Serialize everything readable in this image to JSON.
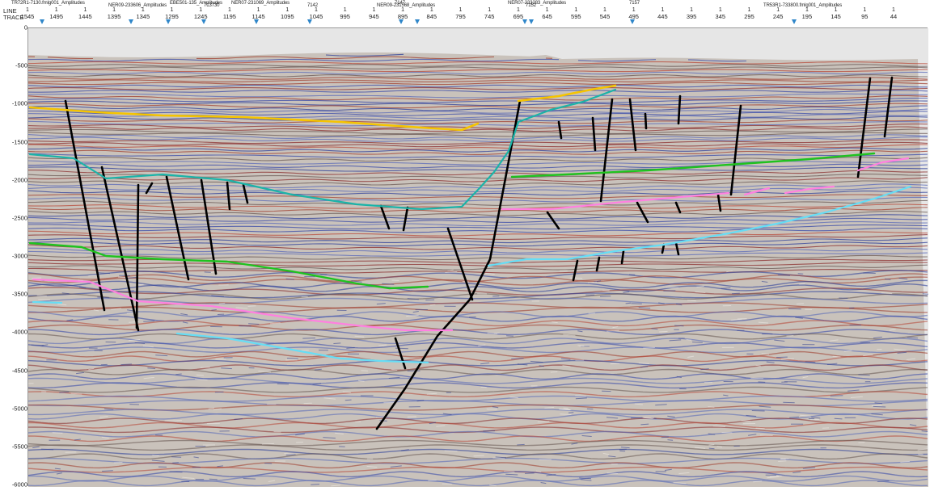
{
  "ruler": {
    "line_label": "LINE",
    "trace_label": "TRACE",
    "trace_ticks": [
      "1545",
      "1495",
      "1445",
      "1395",
      "1345",
      "1295",
      "1245",
      "1195",
      "1145",
      "1095",
      "1045",
      "995",
      "945",
      "895",
      "845",
      "795",
      "745",
      "695",
      "645",
      "595",
      "545",
      "495",
      "445",
      "395",
      "345",
      "295",
      "245",
      "195",
      "145",
      "95",
      "44"
    ],
    "line_value": "1",
    "intersections": [
      {
        "label": "TR72R1-7130.fmlg001_Amplitudes",
        "tie": false
      },
      {
        "label": "NER09-233606_Amplitudes",
        "tie": true
      },
      {
        "label": "EBE501-135_Amplitudes",
        "tie": true
      },
      {
        "label": "713730",
        "tie": true
      },
      {
        "label": "NER07-231069_Amplitudes",
        "tie": true
      },
      {
        "label": "7142",
        "tie": true
      },
      {
        "label": "7147",
        "tie": false
      },
      {
        "label": "NER09-231568_Amplitudes",
        "tie": true
      },
      {
        "label": "NER07-233283_Amplitudes",
        "tie": false
      },
      {
        "label": "7152",
        "tie": true
      },
      {
        "label": "7157",
        "tie": true
      },
      {
        "label": "TR53R1-733800.fmlg001_Amplitudes",
        "tie": true
      }
    ],
    "marker_color": "#2f86c9"
  },
  "depth_axis": {
    "labels": [
      "0",
      "-500",
      "-1000",
      "-1500",
      "-2000",
      "-2500",
      "-3000",
      "-3500",
      "-4000",
      "-4500",
      "-5000",
      "-5500",
      "-6000"
    ]
  },
  "horizons": {
    "colors": {
      "yellow": "#f5c400",
      "teal": "#1bb3a8",
      "green": "#1fc21f",
      "pink": "#ff80e0",
      "cyan": "#66ddf5",
      "fault": "#000000"
    }
  }
}
